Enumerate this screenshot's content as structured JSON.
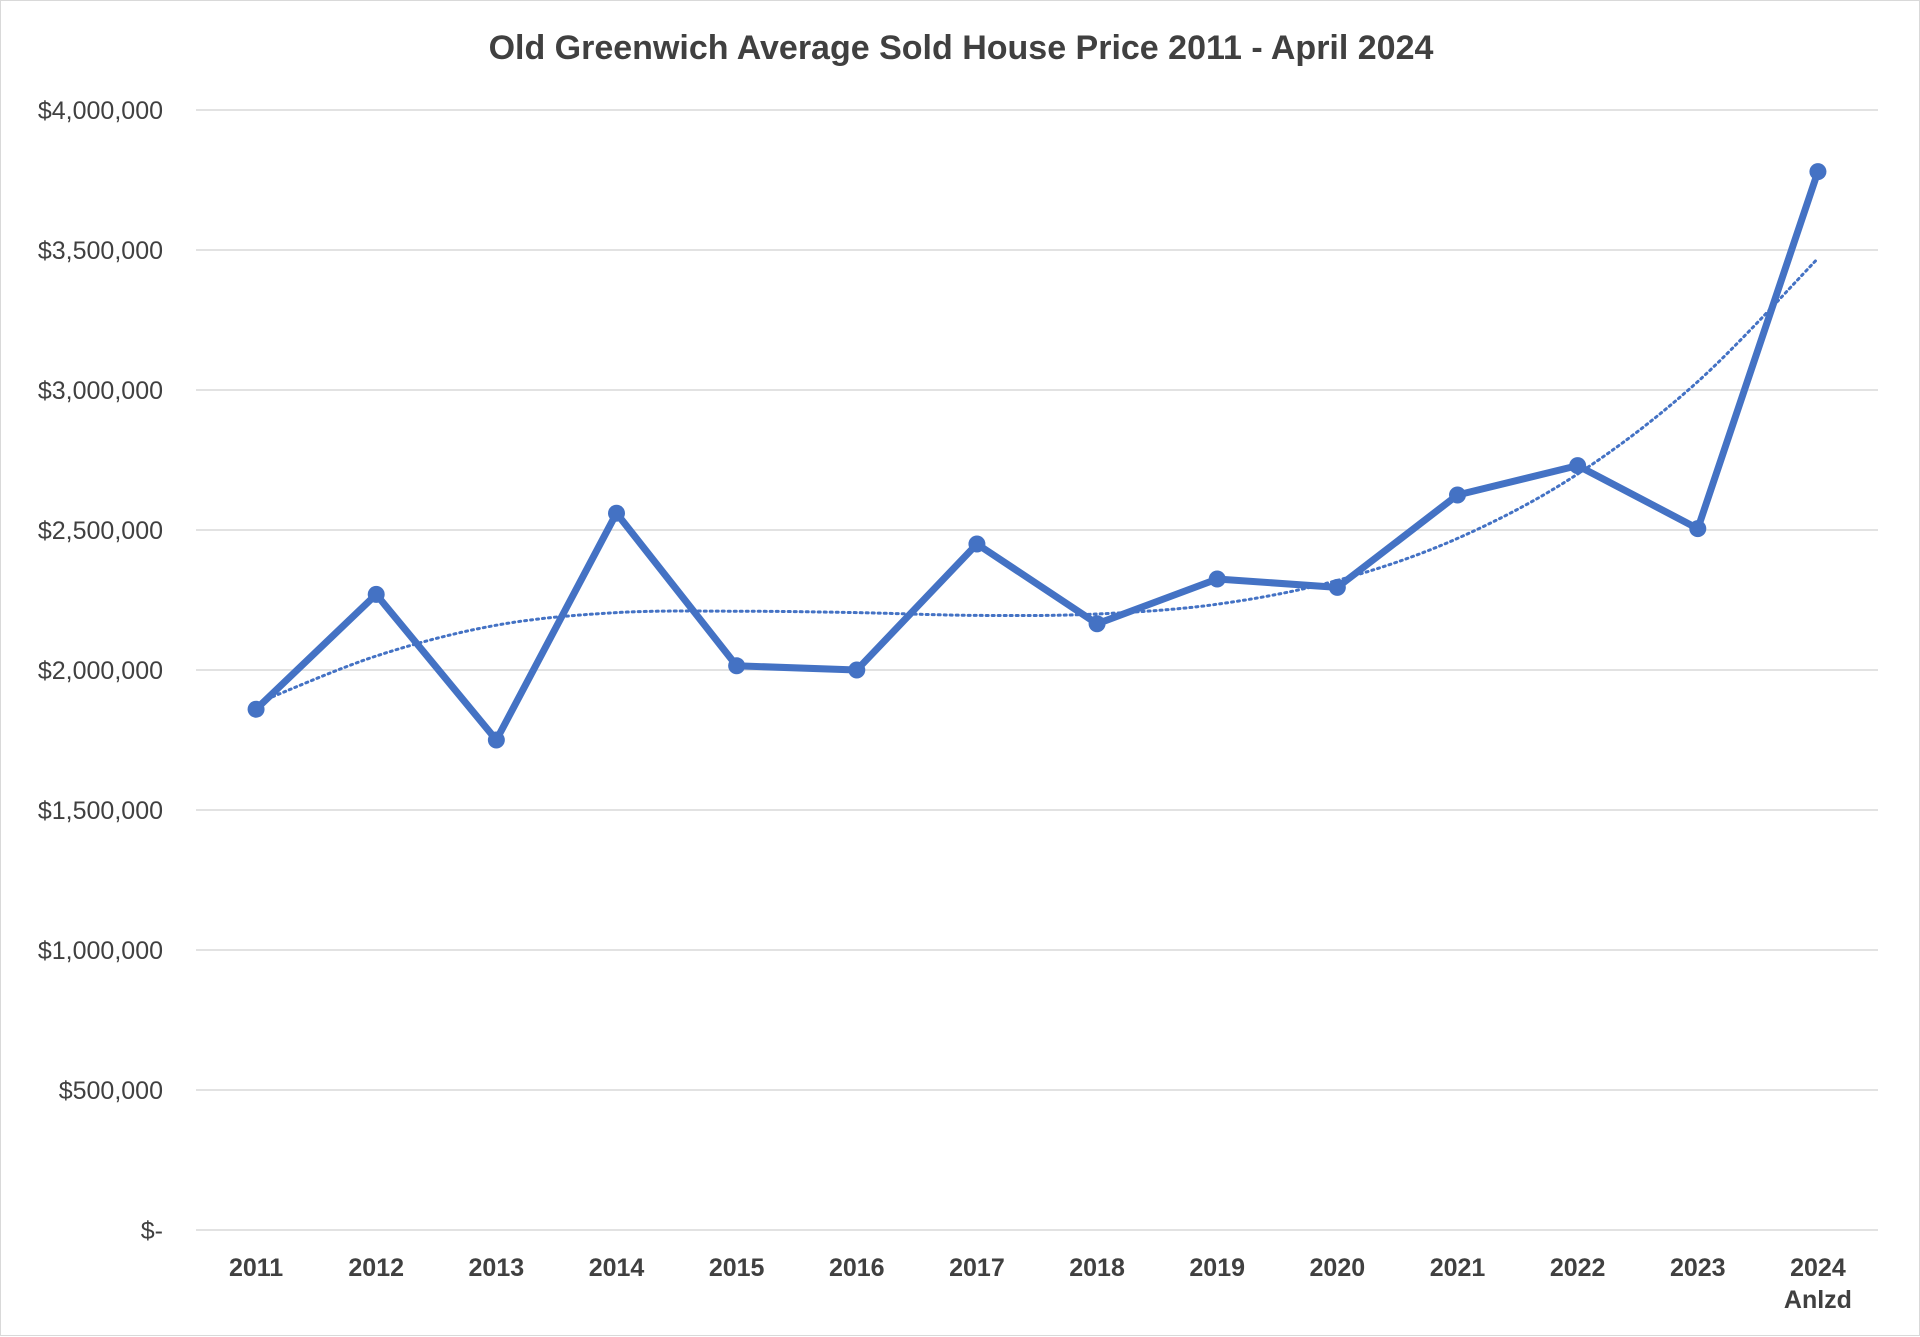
{
  "chart_data": {
    "type": "line",
    "title": "Old Greenwich Average Sold House Price 2011 - April 2024",
    "xlabel": "",
    "ylabel": "",
    "categories": [
      [
        "2011"
      ],
      [
        "2012"
      ],
      [
        "2013"
      ],
      [
        "2014"
      ],
      [
        "2015"
      ],
      [
        "2016"
      ],
      [
        "2017"
      ],
      [
        "2018"
      ],
      [
        "2019"
      ],
      [
        "2020"
      ],
      [
        "2021"
      ],
      [
        "2022"
      ],
      [
        "2023"
      ],
      [
        "2024",
        "Anlzd"
      ]
    ],
    "ylim": [
      0,
      4000000
    ],
    "y_ticks": [
      0,
      500000,
      1000000,
      1500000,
      2000000,
      2500000,
      3000000,
      3500000,
      4000000
    ],
    "y_tick_labels": [
      "$-",
      "$500,000",
      "$1,000,000",
      "$1,500,000",
      "$2,000,000",
      "$2,500,000",
      "$3,000,000",
      "$3,500,000",
      "$4,000,000"
    ],
    "grid": true,
    "legend": "none",
    "series": [
      {
        "values": [
          1860000,
          2270000,
          1750000,
          2560000,
          2015000,
          2000000,
          2450000,
          2165000,
          2325000,
          2295000,
          2625000,
          2730000,
          2505000,
          3780000
        ],
        "color": "#4472c4",
        "style": "solid",
        "markers": true
      }
    ],
    "trendline": {
      "type": "polynomial",
      "style": "dotted",
      "color": "#4472c4",
      "values": [
        1880000,
        2050000,
        2160000,
        2205000,
        2210000,
        2205000,
        2195000,
        2200000,
        2235000,
        2320000,
        2470000,
        2700000,
        3030000,
        3470000
      ]
    }
  }
}
